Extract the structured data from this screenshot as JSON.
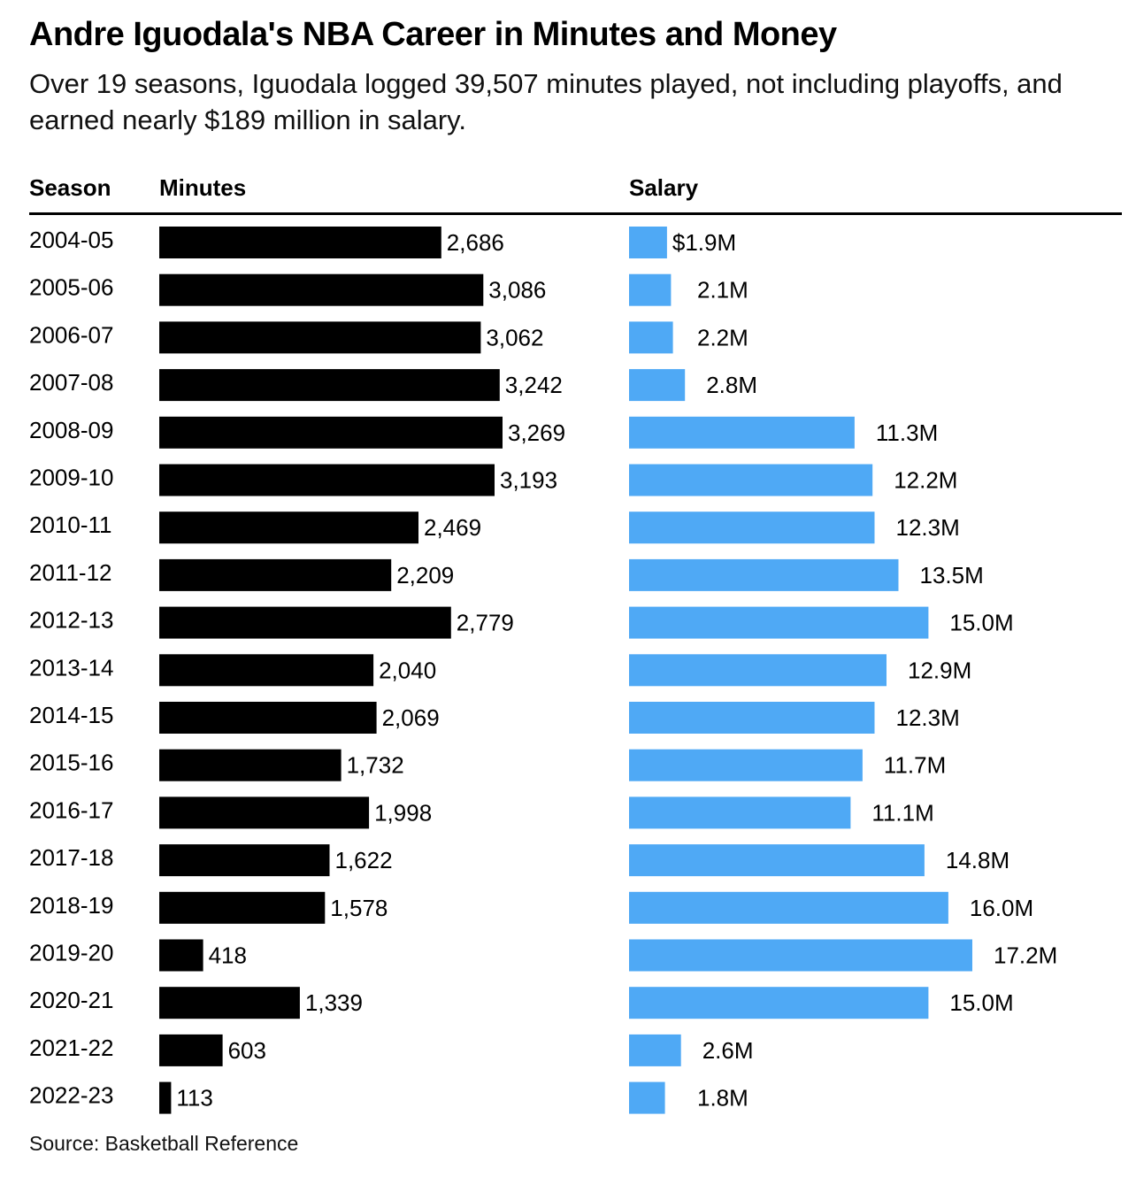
{
  "title": "Andre Iguodala's NBA Career in Minutes and Money",
  "subtitle": "Over 19 seasons, Iguodala logged 39,507 minutes played, not including playoffs, and earned nearly $189 million in salary.",
  "columns": {
    "season": "Season",
    "minutes": "Minutes",
    "salary": "Salary"
  },
  "source": "Source: Basketball Reference",
  "colors": {
    "minutes_bar": "#000000",
    "salary_bar": "#4fa9f5",
    "text": "#000000"
  },
  "chart_data": {
    "type": "bar",
    "orientation": "horizontal",
    "categories": [
      "2004-05",
      "2005-06",
      "2006-07",
      "2007-08",
      "2008-09",
      "2009-10",
      "2010-11",
      "2011-12",
      "2012-13",
      "2013-14",
      "2014-15",
      "2015-16",
      "2016-17",
      "2017-18",
      "2018-19",
      "2019-20",
      "2020-21",
      "2021-22",
      "2022-23"
    ],
    "series": [
      {
        "name": "Minutes",
        "values": [
          2686,
          3086,
          3062,
          3242,
          3269,
          3193,
          2469,
          2209,
          2779,
          2040,
          2069,
          1732,
          1998,
          1622,
          1578,
          418,
          1339,
          603,
          113
        ],
        "labels": [
          "2,686",
          "3,086",
          "3,062",
          "3,242",
          "3,269",
          "3,193",
          "2,469",
          "2,209",
          "2,779",
          "2,040",
          "2,069",
          "1,732",
          "1,998",
          "1,622",
          "1,578",
          "418",
          "1,339",
          "603",
          "113"
        ]
      },
      {
        "name": "Salary",
        "unit": "$M",
        "values": [
          1.9,
          2.1,
          2.2,
          2.8,
          11.3,
          12.2,
          12.3,
          13.5,
          15.0,
          12.9,
          12.3,
          11.7,
          11.1,
          14.8,
          16.0,
          17.2,
          15.0,
          2.6,
          1.8
        ],
        "labels": [
          "$1.9M",
          "2.1M",
          "2.2M",
          "2.8M",
          "11.3M",
          "12.2M",
          "12.3M",
          "13.5M",
          "15.0M",
          "12.9M",
          "12.3M",
          "11.7M",
          "11.1M",
          "14.8M",
          "16.0M",
          "17.2M",
          "15.0M",
          "2.6M",
          "1.8M"
        ]
      }
    ]
  }
}
